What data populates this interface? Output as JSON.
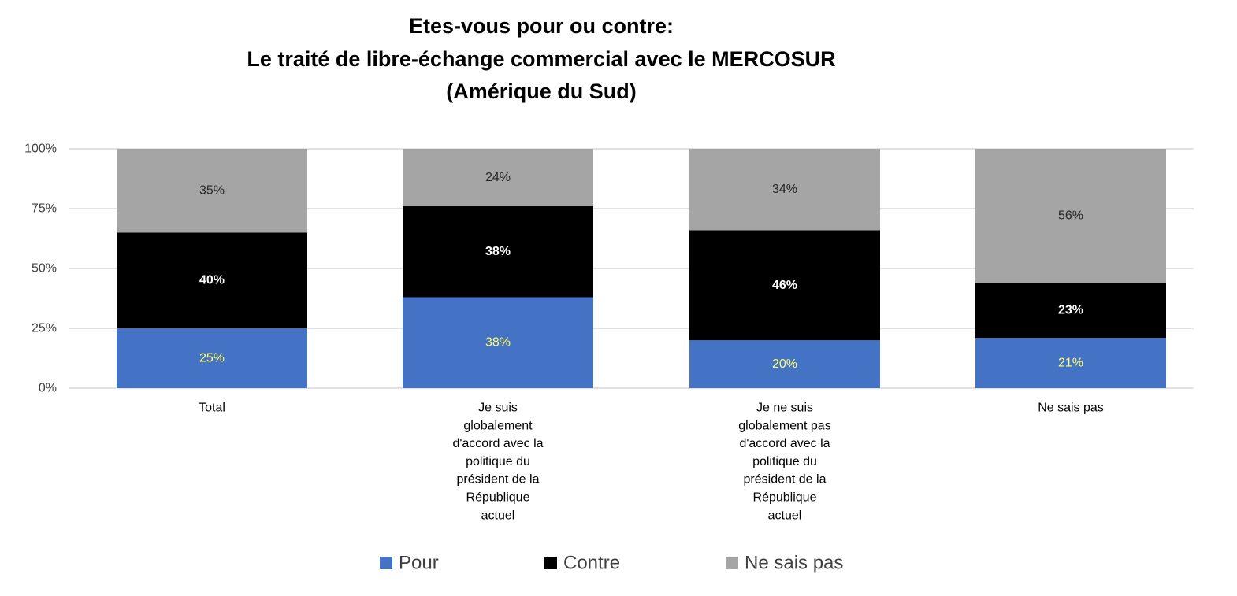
{
  "chart_data": {
    "type": "bar",
    "stacked": true,
    "title": [
      "Etes-vous pour ou contre:",
      "Le traité de libre-échange commercial avec le MERCOSUR",
      "(Amérique du Sud)"
    ],
    "categories": [
      [
        "Total"
      ],
      [
        "Je suis",
        "globalement",
        "d'accord avec la",
        "politique du",
        "président de la",
        "République",
        "actuel"
      ],
      [
        "Je ne suis",
        "globalement pas",
        "d'accord avec la",
        "politique du",
        "président de la",
        "République",
        "actuel"
      ],
      [
        "Ne sais pas"
      ]
    ],
    "series": [
      {
        "name": "Pour",
        "color": "#4472C4",
        "label_color": "#FFFF66",
        "label_bold": false,
        "values": [
          25,
          38,
          20,
          21
        ]
      },
      {
        "name": "Contre",
        "color": "#000000",
        "label_color": "#FFFFFF",
        "label_bold": true,
        "values": [
          40,
          38,
          46,
          23
        ]
      },
      {
        "name": "Ne sais pas",
        "color": "#A5A5A5",
        "label_color": "#262626",
        "label_bold": false,
        "values": [
          35,
          24,
          34,
          56
        ]
      }
    ],
    "ylim": [
      0,
      100
    ],
    "yticks": [
      "0%",
      "25%",
      "50%",
      "75%",
      "100%"
    ],
    "grid": true,
    "legend_position": "bottom",
    "value_suffix": "%"
  }
}
